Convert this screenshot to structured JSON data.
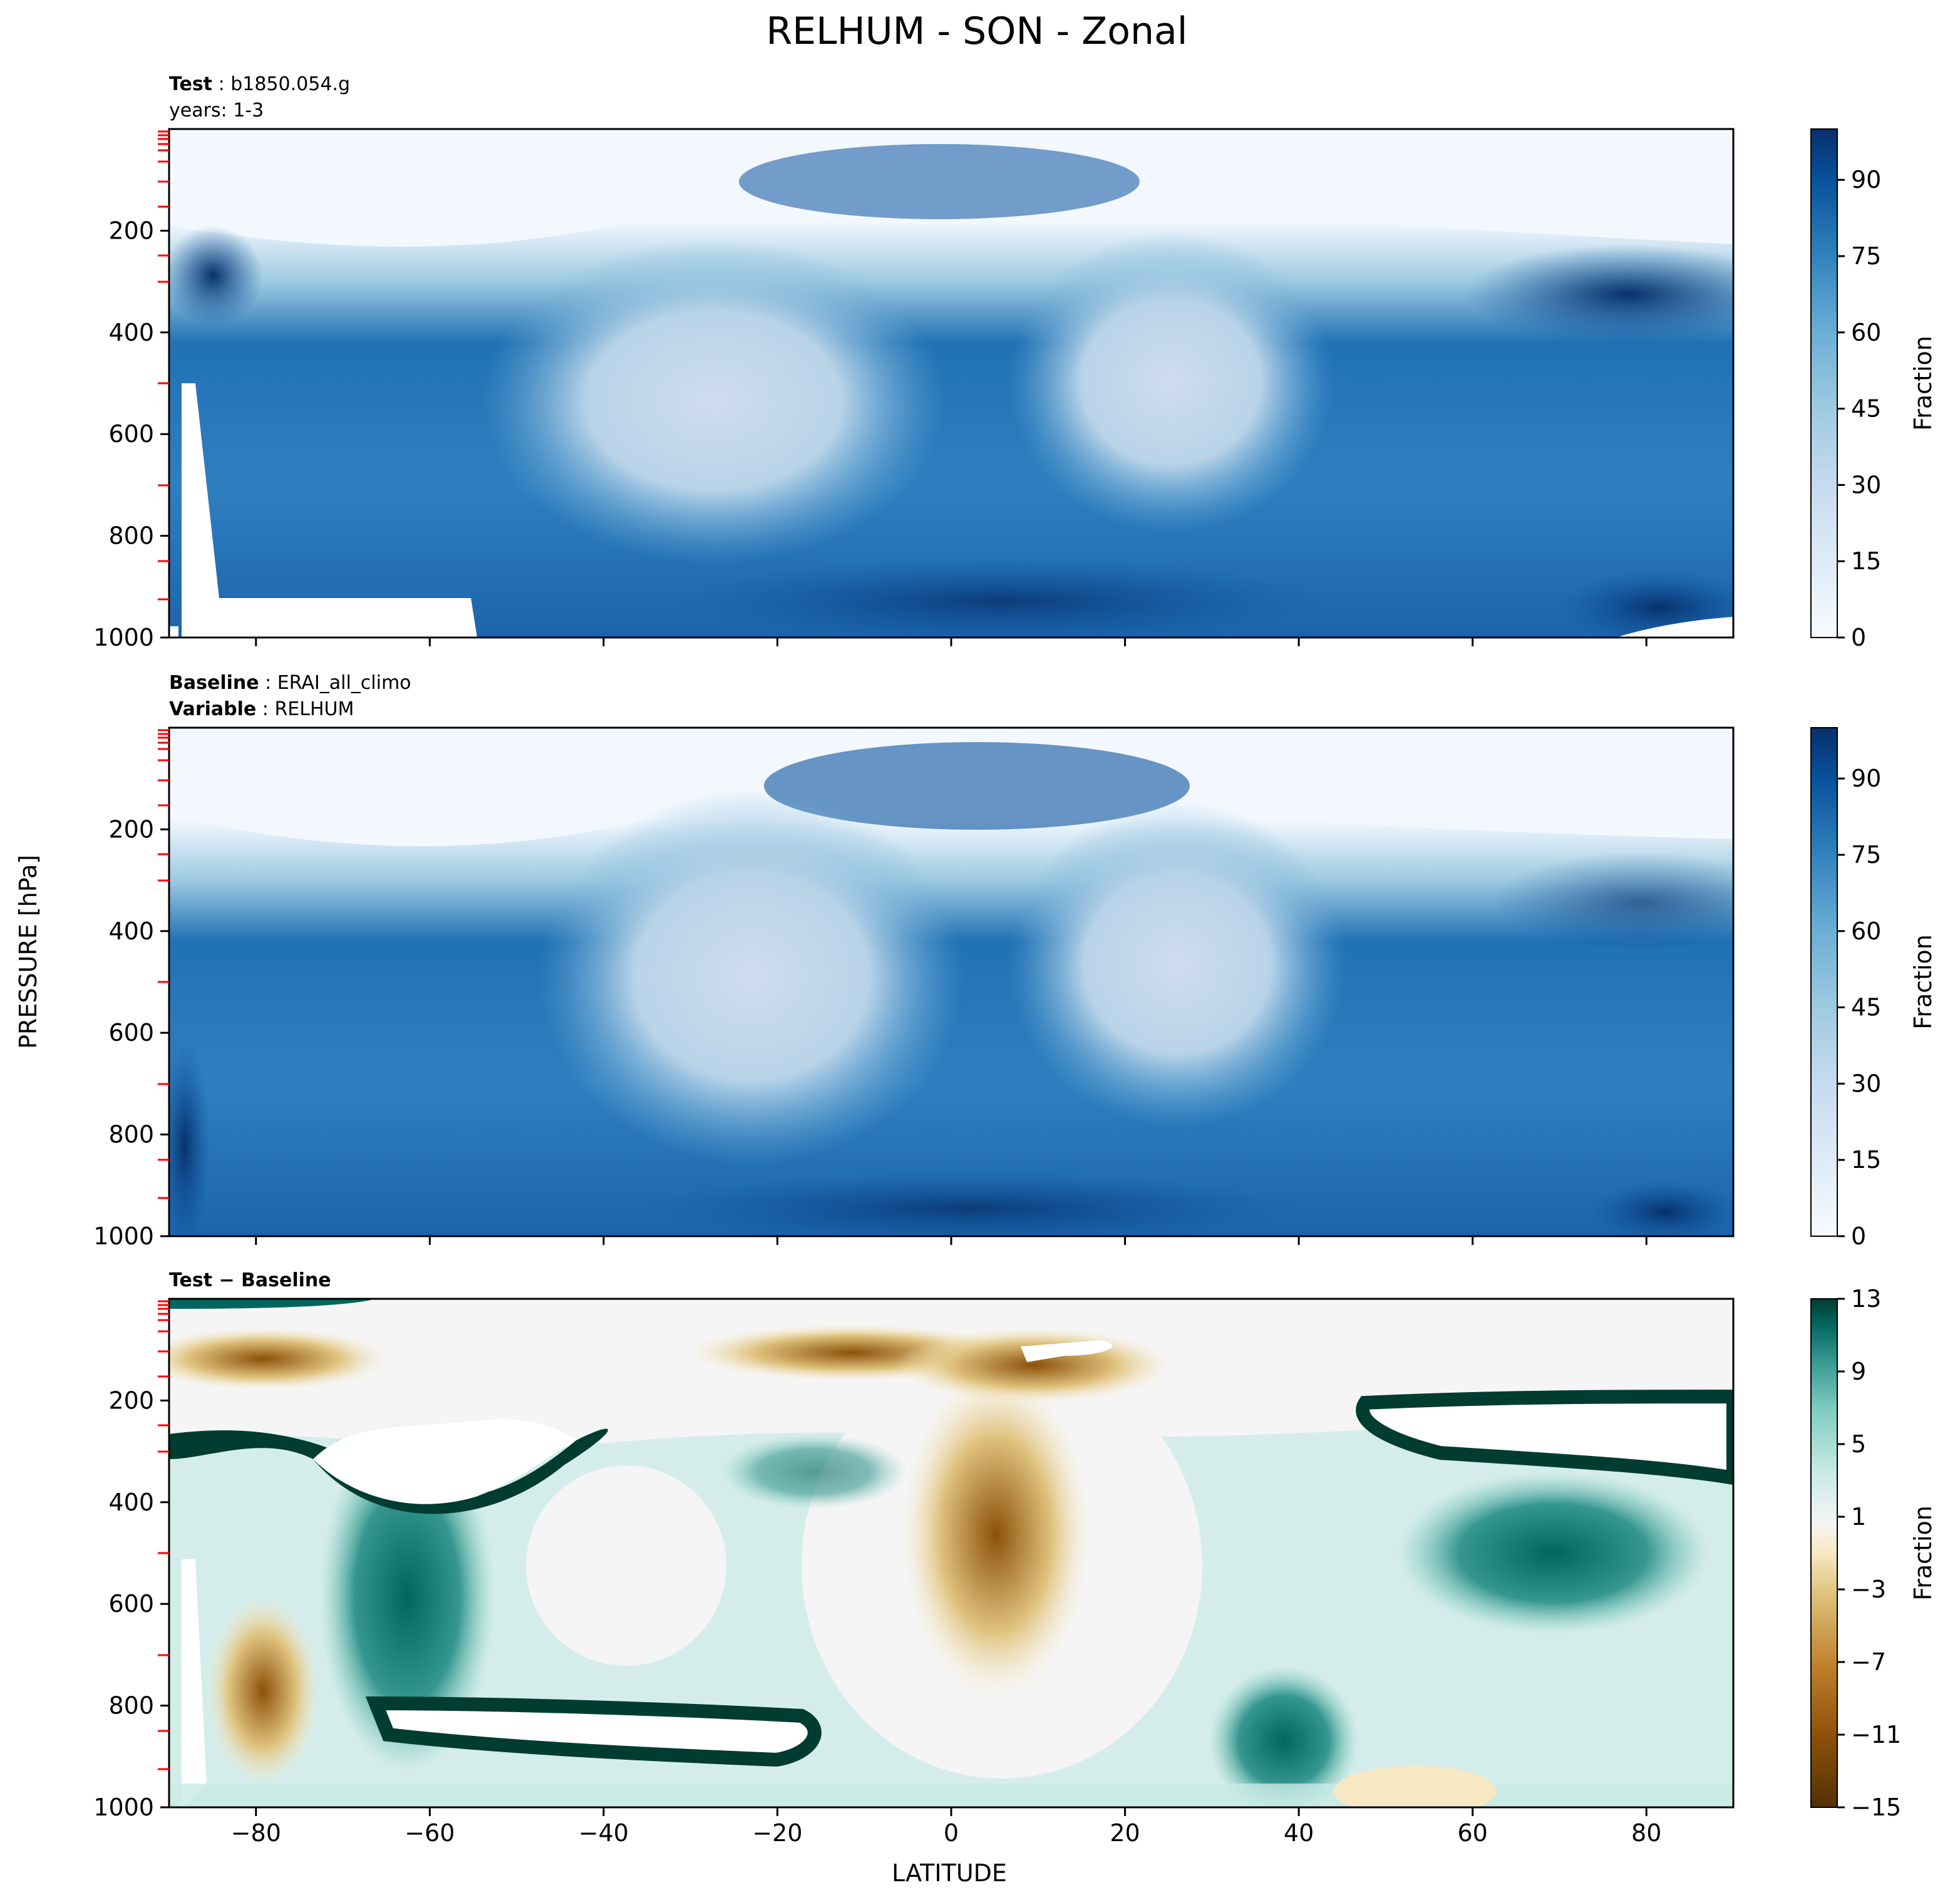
{
  "chart_data": {
    "title": "RELHUM - SON - Zonal",
    "ylabel": "PRESSURE [hPa]",
    "xlabel": "LATITUDE",
    "x_ticks": [
      -80,
      -60,
      -40,
      -20,
      0,
      20,
      40,
      60,
      80
    ],
    "x_tick_labels": [
      "−80",
      "−60",
      "−40",
      "−20",
      "0",
      "20",
      "40",
      "60",
      "80"
    ],
    "xlim": [
      -90,
      90
    ],
    "y_ticks": [
      200,
      400,
      600,
      800,
      1000
    ],
    "y_tick_labels": [
      "200",
      "400",
      "600",
      "800",
      "1000"
    ],
    "ylim": [
      1000,
      0
    ],
    "panels": [
      {
        "type": "heatmap",
        "subtitle": [
          {
            "bold": "Test",
            "sep": " : ",
            "rest": "b1850.054.g"
          },
          {
            "bold": "",
            "sep": "",
            "rest": "years: 1-3"
          }
        ],
        "colorbar": {
          "label": "Fraction",
          "ticks": [
            "0",
            "15",
            "30",
            "45",
            "60",
            "75",
            "90"
          ],
          "range": [
            0,
            100
          ]
        }
      },
      {
        "type": "heatmap",
        "subtitle": [
          {
            "bold": "Baseline",
            "sep": " : ",
            "rest": "ERAI_all_climo"
          },
          {
            "bold": "Variable",
            "sep": " : ",
            "rest": "RELHUM"
          }
        ],
        "colorbar": {
          "label": "Fraction",
          "ticks": [
            "0",
            "15",
            "30",
            "45",
            "60",
            "75",
            "90"
          ],
          "range": [
            0,
            100
          ]
        }
      },
      {
        "type": "heatmap",
        "subtitle": [
          {
            "bold": "Test − Baseline",
            "sep": "",
            "rest": ""
          }
        ],
        "colorbar": {
          "label": "Fraction",
          "ticks": [
            "−15",
            "−11",
            "−7",
            "−3",
            "1",
            "5",
            "9",
            "13"
          ],
          "range": [
            -15,
            13
          ]
        }
      }
    ]
  }
}
